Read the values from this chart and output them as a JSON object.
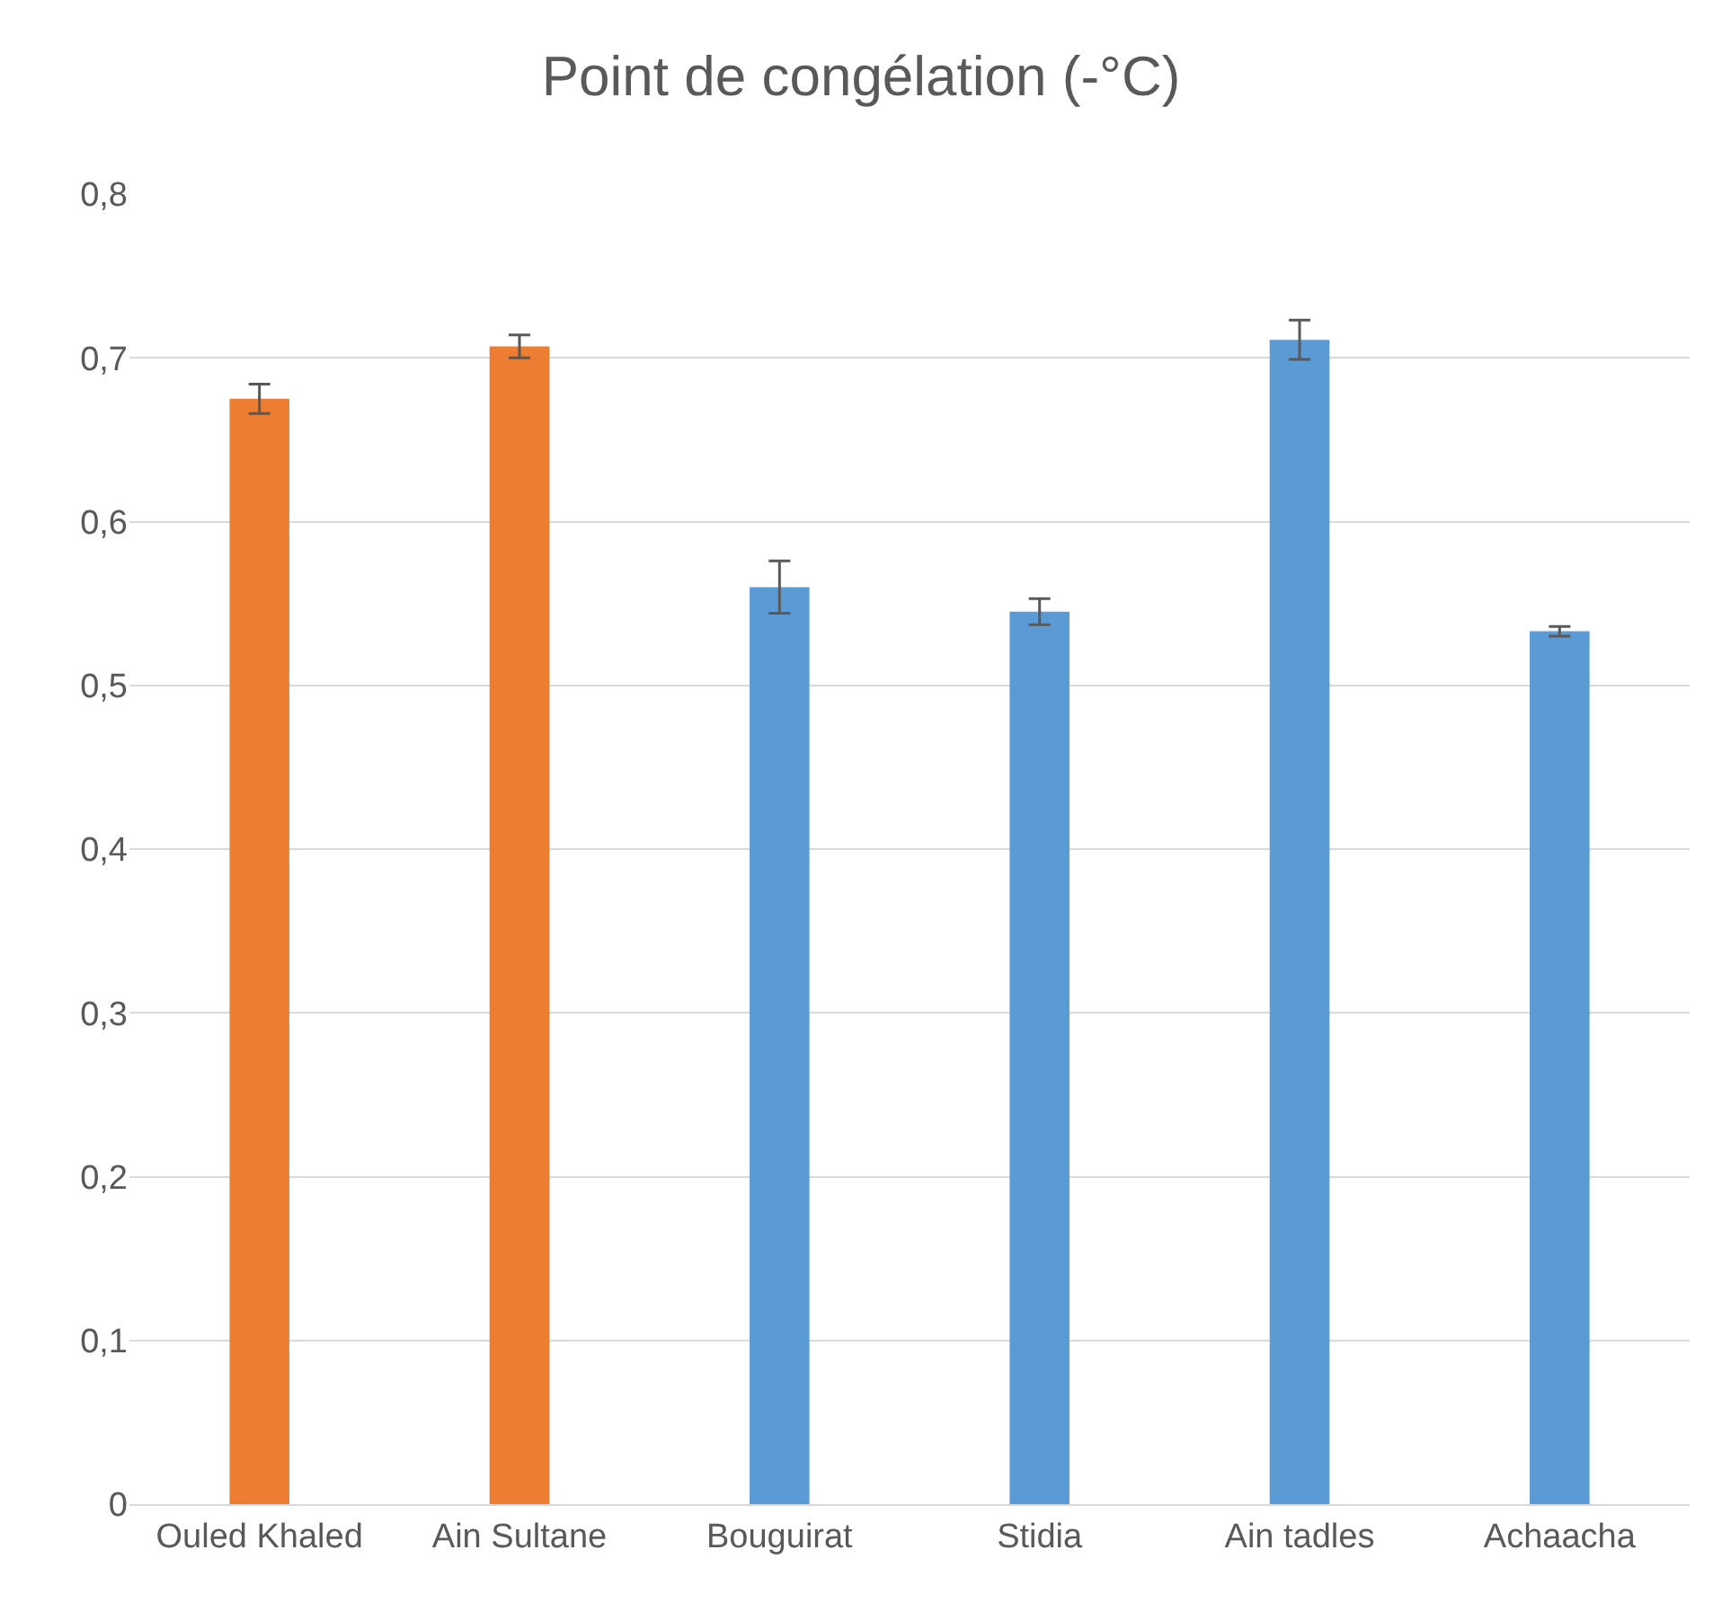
{
  "chart_data": {
    "type": "bar",
    "title": "Point de congélation (-°C)",
    "categories": [
      "Ouled Khaled",
      "Ain Sultane",
      "Bouguirat",
      "Stidia",
      "Ain tadles",
      "Achaacha"
    ],
    "values": [
      0.675,
      0.707,
      0.56,
      0.545,
      0.711,
      0.533
    ],
    "colors": [
      "#ed7d31",
      "#ed7d31",
      "#5b9bd5",
      "#5b9bd5",
      "#5b9bd5",
      "#5b9bd5"
    ],
    "errors": [
      0.009,
      0.007,
      0.016,
      0.008,
      0.012,
      0.003
    ],
    "ylim": [
      0,
      0.8
    ],
    "yticks": [
      {
        "value": 0,
        "label": "0"
      },
      {
        "value": 0.1,
        "label": "0,1"
      },
      {
        "value": 0.2,
        "label": "0,2"
      },
      {
        "value": 0.3,
        "label": "0,3"
      },
      {
        "value": 0.4,
        "label": "0,4"
      },
      {
        "value": 0.5,
        "label": "0,5"
      },
      {
        "value": 0.6,
        "label": "0,6"
      },
      {
        "value": 0.7,
        "label": "0,7"
      },
      {
        "value": 0.8,
        "label": "0,8"
      }
    ],
    "grid": "y"
  }
}
